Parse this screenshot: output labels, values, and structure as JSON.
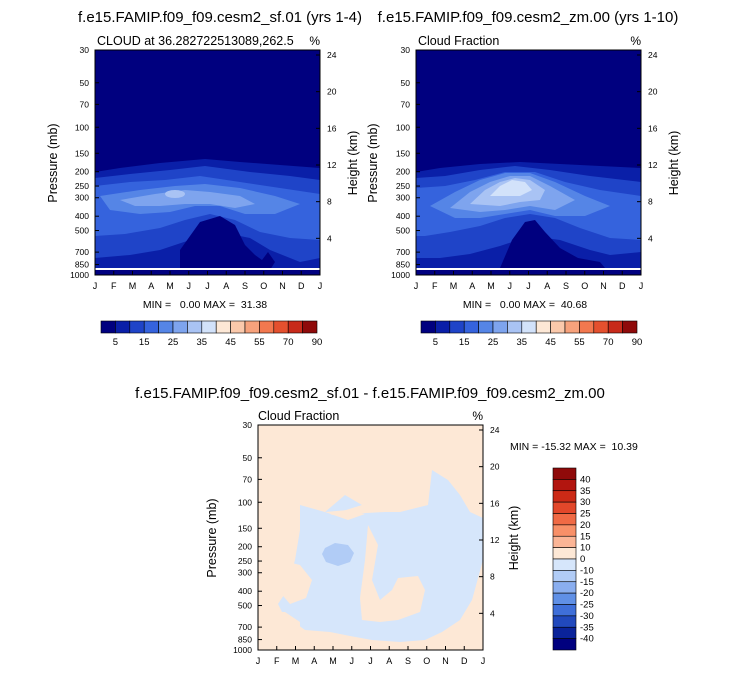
{
  "chart_data": [
    {
      "type": "contour",
      "title": "f.e15.FAMIP.f09_f09.cesm2_sf.01 (yrs 1-4)",
      "subtitle_left": "CLOUD at 36.282722513089,262.5",
      "subtitle_right": "%",
      "ylabel": "Pressure (mb)",
      "ylabel_right": "Height (km)",
      "x_ticks": [
        "J",
        "F",
        "M",
        "A",
        "M",
        "J",
        "J",
        "A",
        "S",
        "O",
        "N",
        "D",
        "J"
      ],
      "y_ticks": [
        "30",
        "50",
        "70",
        "100",
        "150",
        "200",
        "250",
        "300",
        "400",
        "500",
        "700",
        "850",
        "1000"
      ],
      "y_ticks_right": [
        "24",
        "20",
        "16",
        "12",
        "8",
        "4"
      ],
      "stats_text": "MIN =   0.00 MAX =  31.38",
      "colorbar_labels": [
        "5",
        "15",
        "25",
        "35",
        "45",
        "55",
        "70",
        "90"
      ],
      "max_value": 31.38
    },
    {
      "type": "contour",
      "title": "f.e15.FAMIP.f09_f09.cesm2_zm.00 (yrs 1-10)",
      "subtitle_left": "Cloud Fraction",
      "subtitle_right": "%",
      "ylabel": "Pressure (mb)",
      "ylabel_right": "Height (km)",
      "x_ticks": [
        "J",
        "F",
        "M",
        "A",
        "M",
        "J",
        "J",
        "A",
        "S",
        "O",
        "N",
        "D",
        "J"
      ],
      "y_ticks": [
        "30",
        "50",
        "70",
        "100",
        "150",
        "200",
        "250",
        "300",
        "400",
        "500",
        "700",
        "850",
        "1000"
      ],
      "y_ticks_right": [
        "24",
        "20",
        "16",
        "12",
        "8",
        "4"
      ],
      "stats_text": "MIN =   0.00 MAX =  40.68",
      "colorbar_labels": [
        "5",
        "15",
        "25",
        "35",
        "45",
        "55",
        "70",
        "90"
      ],
      "max_value": 40.68
    },
    {
      "type": "contour",
      "title": "f.e15.FAMIP.f09_f09.cesm2_sf.01 - f.e15.FAMIP.f09_f09.cesm2_zm.00",
      "subtitle_left": "Cloud Fraction",
      "subtitle_right": "%",
      "ylabel": "Pressure (mb)",
      "ylabel_right": "Height (km)",
      "x_ticks": [
        "J",
        "F",
        "M",
        "A",
        "M",
        "J",
        "J",
        "A",
        "S",
        "O",
        "N",
        "D",
        "J"
      ],
      "y_ticks": [
        "30",
        "50",
        "70",
        "100",
        "150",
        "200",
        "250",
        "300",
        "400",
        "500",
        "700",
        "850",
        "1000"
      ],
      "y_ticks_right": [
        "24",
        "20",
        "16",
        "12",
        "8",
        "4"
      ],
      "stats_text": "MIN = -15.32 MAX =  10.39",
      "colorbar_labels": [
        "40",
        "35",
        "30",
        "25",
        "20",
        "15",
        "10",
        "0",
        "-10",
        "-15",
        "-20",
        "-25",
        "-30",
        "-35",
        "-40"
      ],
      "min_value": -15.32,
      "max_value": 10.39
    }
  ],
  "colors": {
    "abs_scale": [
      "#00007f",
      "#0a1fa8",
      "#1f44c8",
      "#3563dd",
      "#5585e6",
      "#7ea4ee",
      "#a9c3f4",
      "#d2e2fa",
      "#fde8d6",
      "#fbc9ab",
      "#f7a27c",
      "#f2784f",
      "#e4502e",
      "#c82a1a",
      "#8f0a0a"
    ],
    "diff_scale": [
      "#8f0a0a",
      "#b2150f",
      "#cc2a16",
      "#e2472a",
      "#f06a45",
      "#f89068",
      "#fbb596",
      "#fde8d6",
      "#d6e6fb",
      "#b1ccf6",
      "#8aaeef",
      "#6090e6",
      "#3f6fd9",
      "#2149bd",
      "#0a239a",
      "#00007f"
    ]
  }
}
